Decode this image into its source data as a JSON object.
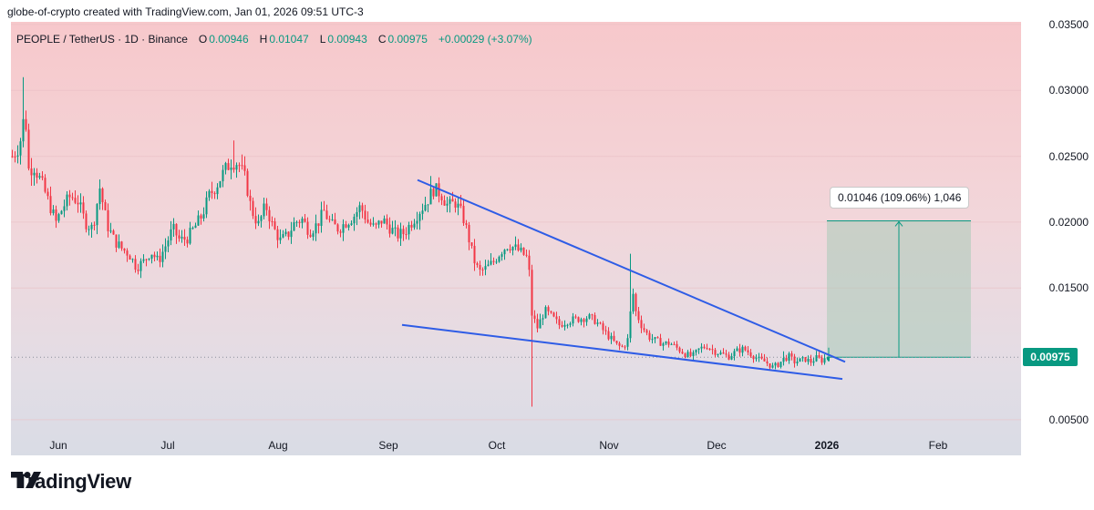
{
  "credit": "globe-of-crypto created with TradingView.com, Jan 01, 2026 09:51 UTC-3",
  "legend": {
    "symbol": "PEOPLE / TetherUS · 1D · Binance",
    "open_key": "O",
    "open": "0.00946",
    "high_key": "H",
    "high": "0.01047",
    "low_key": "L",
    "low": "0.00943",
    "close_key": "C",
    "close": "0.00975",
    "change": "+0.00029 (+3.07%)"
  },
  "current_price_label": "0.00975",
  "measure_label": "0.01046 (109.06%) 1,046",
  "logo_text": "TradingView",
  "colors": {
    "up": "#089981",
    "down": "#f23645",
    "trendline": "#2e5ce6",
    "target_zone": "#a9cbb8"
  },
  "chart_data": {
    "type": "candlestick",
    "x_ticks": [
      "Jun",
      "Jul",
      "Aug",
      "Sep",
      "Oct",
      "Nov",
      "Dec",
      "2026",
      "Feb"
    ],
    "y_ticks": [
      "0.00500",
      "0.01500",
      "0.02000",
      "0.02500",
      "0.03000",
      "0.03500"
    ],
    "ylim": [
      0.0023,
      0.0352
    ],
    "last_close": 0.00975,
    "target_zone": {
      "low": 0.00975,
      "high": 0.0201
    },
    "support_line": {
      "start": 0.0122,
      "end": 0.0081
    },
    "resistance_line": {
      "start": 0.0232,
      "end": 0.0094
    },
    "ohlc_approx": [
      {
        "period": "late May",
        "high": 0.031,
        "low": 0.022,
        "close": 0.0245
      },
      {
        "period": "early Jun",
        "high": 0.0255,
        "low": 0.0185,
        "close": 0.0205
      },
      {
        "period": "late Jun",
        "high": 0.02,
        "low": 0.015,
        "close": 0.0175
      },
      {
        "period": "mid Jul",
        "high": 0.0262,
        "low": 0.0175,
        "close": 0.0245
      },
      {
        "period": "late Jul",
        "high": 0.0245,
        "low": 0.0175,
        "close": 0.019
      },
      {
        "period": "mid Aug",
        "high": 0.0225,
        "low": 0.0175,
        "close": 0.02
      },
      {
        "period": "mid Sep",
        "high": 0.0235,
        "low": 0.0185,
        "close": 0.0205
      },
      {
        "period": "late Sep",
        "high": 0.0185,
        "low": 0.0155,
        "close": 0.018
      },
      {
        "period": "early Oct",
        "high": 0.018,
        "low": 0.006,
        "close": 0.013
      },
      {
        "period": "late Oct",
        "high": 0.0135,
        "low": 0.01,
        "close": 0.011
      },
      {
        "period": "early Nov",
        "high": 0.0176,
        "low": 0.009,
        "close": 0.0125
      },
      {
        "period": "late Nov",
        "high": 0.012,
        "low": 0.009,
        "close": 0.0105
      },
      {
        "period": "mid Dec",
        "high": 0.0115,
        "low": 0.0085,
        "close": 0.0095
      },
      {
        "period": "late Dec",
        "high": 0.01047,
        "low": 0.0085,
        "close": 0.00975
      }
    ]
  }
}
